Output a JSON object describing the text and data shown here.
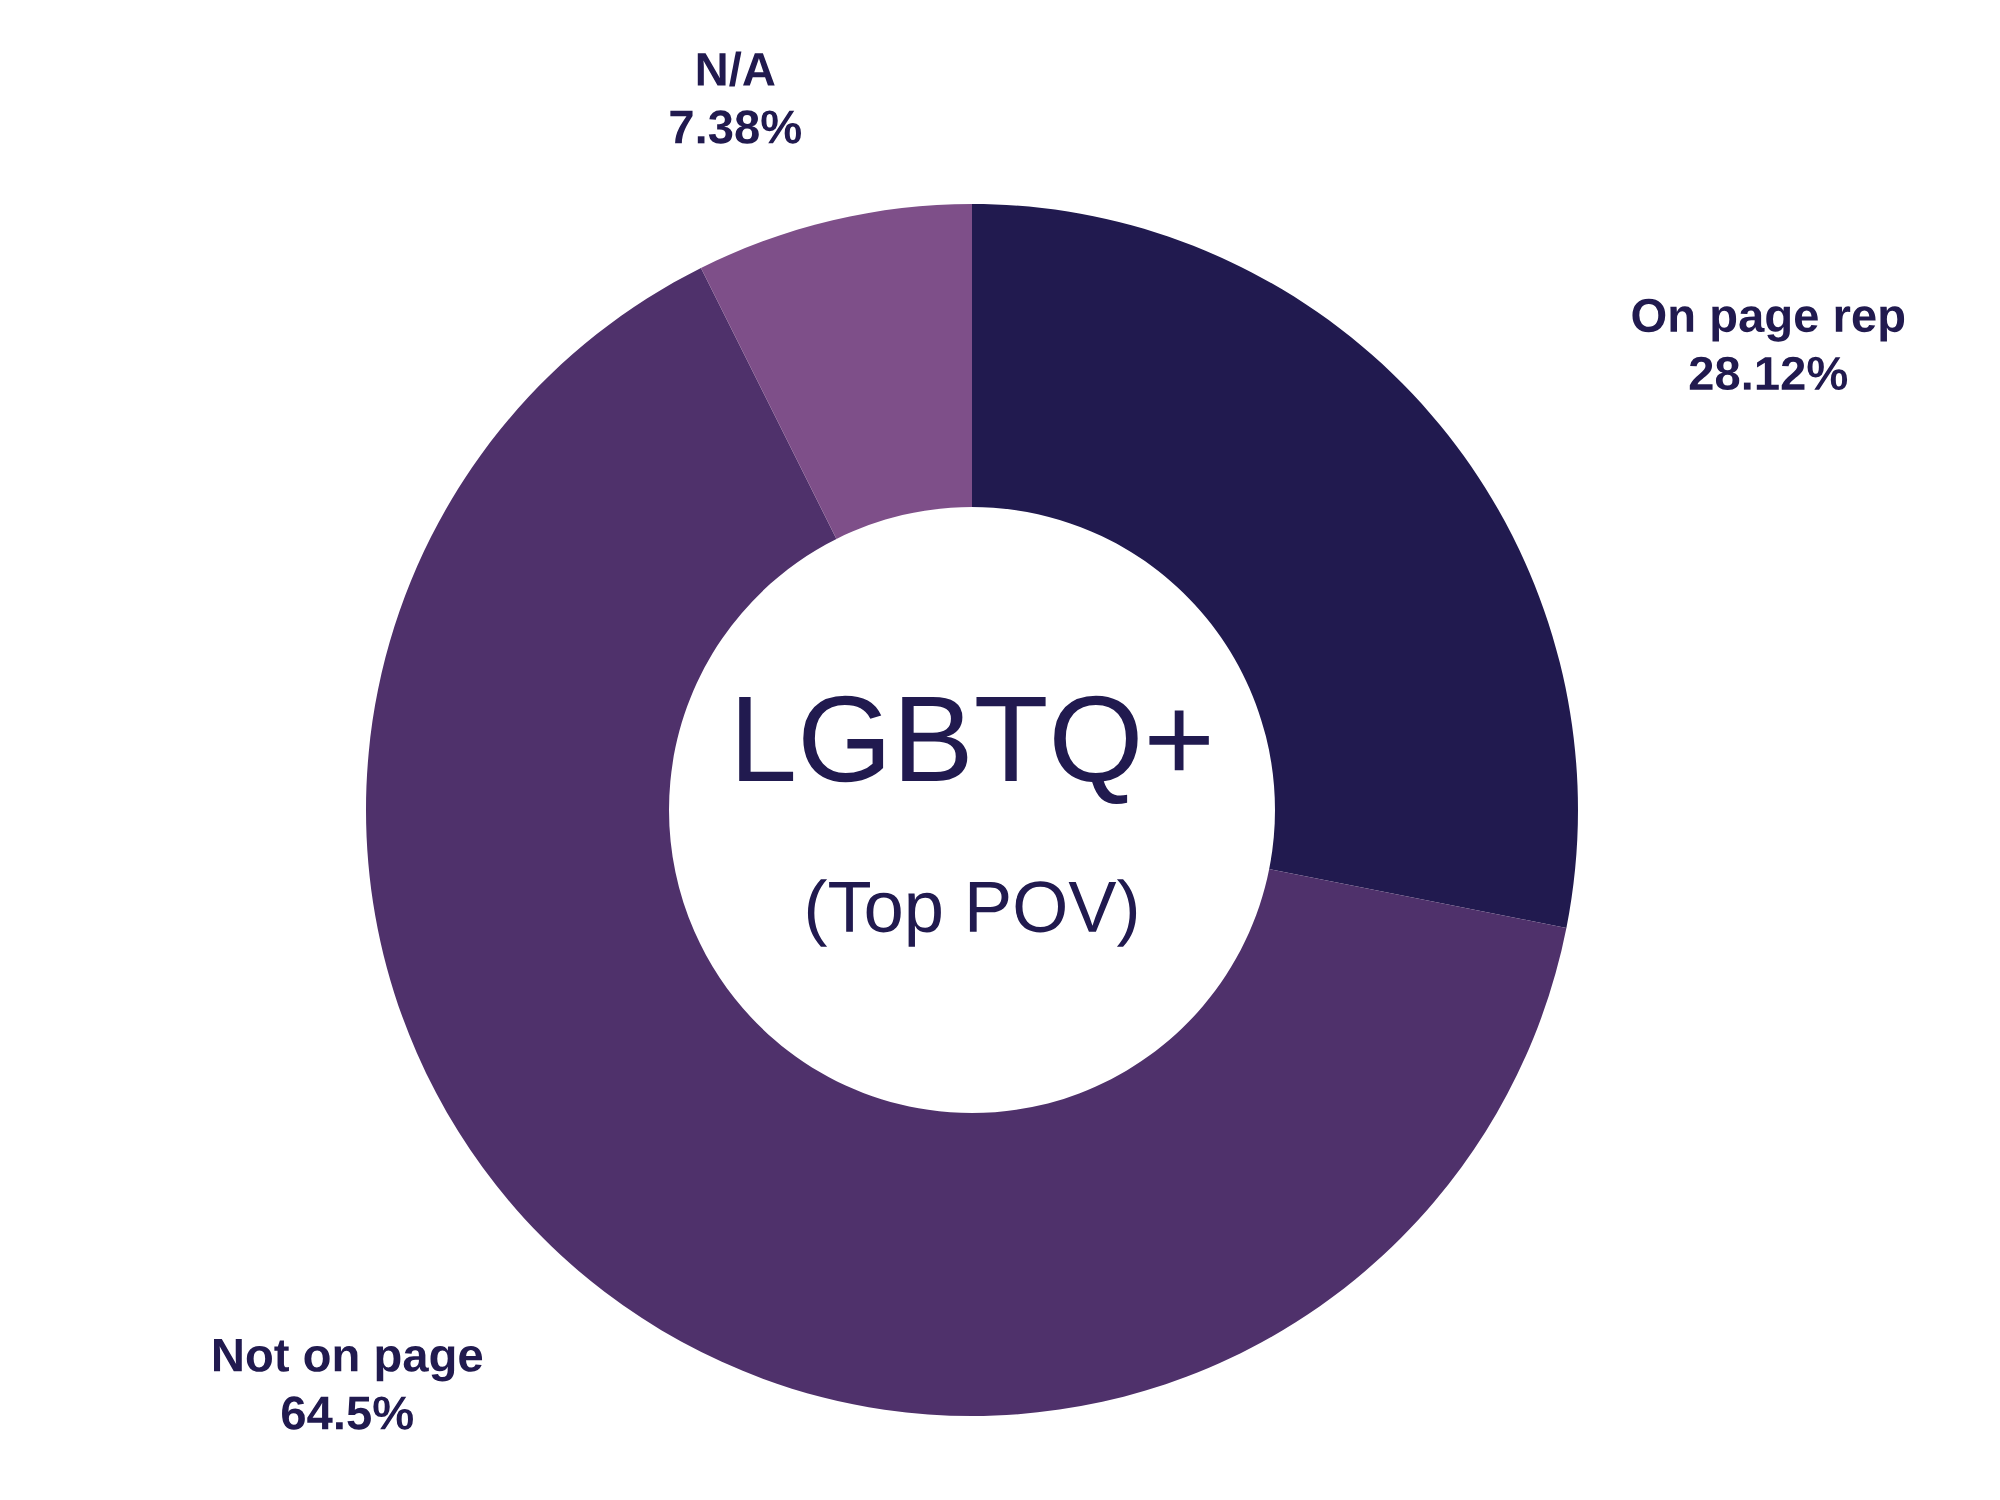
{
  "chart_data": {
    "type": "donut",
    "title": "LGBTQ+",
    "subtitle": "(Top POV)",
    "categories": [
      "On page rep",
      "Not on page",
      "N/A"
    ],
    "values": [
      28.12,
      64.5,
      7.38
    ],
    "colors": [
      "#211a4f",
      "#4f316b",
      "#7e4f89"
    ],
    "value_labels": [
      "28.12%",
      "64.5%",
      "7.38%"
    ],
    "legend": false
  }
}
